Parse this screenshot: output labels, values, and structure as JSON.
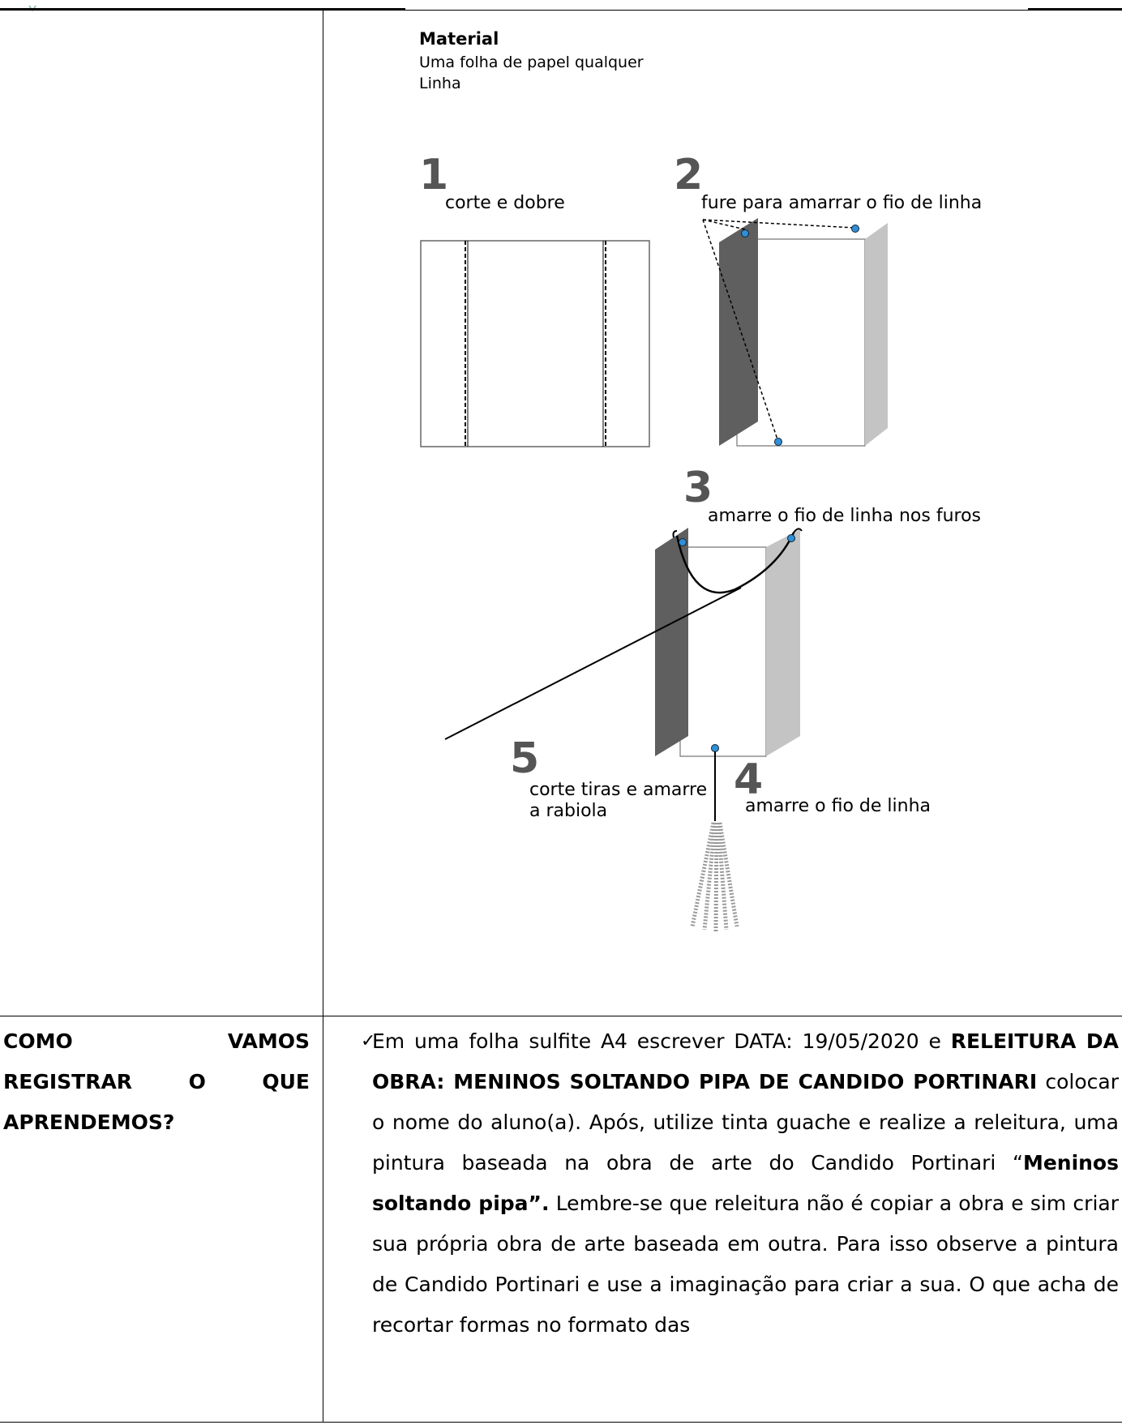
{
  "material": {
    "heading": "Material",
    "items": [
      "Uma folha de papel qualquer",
      "Linha"
    ]
  },
  "steps": [
    {
      "number": "1",
      "label": "corte e dobre"
    },
    {
      "number": "2",
      "label": "fure para amarrar o fio de linha"
    },
    {
      "number": "3",
      "label": "amarre o fio de linha nos furos"
    },
    {
      "number": "4",
      "label": "amarre o fio de linha"
    },
    {
      "number": "5",
      "label_line1": "corte tiras e amarre",
      "label_line2": "a rabiola"
    }
  ],
  "register": {
    "label_words": [
      "COMO",
      "VAMOS",
      "REGISTRAR",
      "O",
      "QUE",
      "APRENDEMOS?"
    ],
    "text_part1": "Em uma folha sulfite A4 escrever DATA: 19/05/2020 e ",
    "text_bold1": "RELEITURA DA OBRA: MENINOS SOLTANDO PIPA DE CANDIDO PORTINARI",
    "text_part2": " colocar o nome do aluno(a). Após, utilize tinta guache e realize a releitura, uma pintura baseada na obra de arte do Candido Portinari “",
    "text_bold2": "Meninos soltando pipa”.",
    "text_part3": " Lembre-se que releitura não é copiar a obra e sim criar sua própria obra de arte baseada em outra. Para isso observe a pintura de Candido Portinari e use a imaginação para criar a sua. O que acha de recortar formas no formato das"
  },
  "colors": {
    "dark_fold": "#5f5f5f",
    "light_fold": "#c4c4c4",
    "hole": "#2f8fd8"
  }
}
